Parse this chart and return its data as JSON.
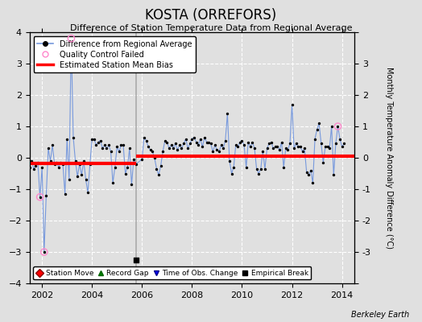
{
  "title": "KOSTA (ORREFORS)",
  "subtitle": "Difference of Station Temperature Data from Regional Average",
  "ylabel": "Monthly Temperature Anomaly Difference (°C)",
  "xlabel_credit": "Berkeley Earth",
  "xlim": [
    2001.5,
    2014.5
  ],
  "ylim": [
    -4,
    4
  ],
  "yticks": [
    -4,
    -3,
    -2,
    -1,
    0,
    1,
    2,
    3,
    4
  ],
  "xticks": [
    2002,
    2004,
    2006,
    2008,
    2010,
    2012,
    2014
  ],
  "bg_color": "#e0e0e0",
  "plot_bg_color": "#e0e0e0",
  "grid_color": "white",
  "line_color": "#7799dd",
  "dot_color": "black",
  "bias_color": "red",
  "qc_fail_color": "#ff88cc",
  "vertical_line_color": "#aaaaaa",
  "vertical_lines": [
    2005.75
  ],
  "bias_break": 2005.75,
  "bias_early": -0.18,
  "bias_late": 0.05,
  "empirical_break_x": 2005.75,
  "empirical_break_y": -3.25,
  "time_series": [
    2001.083,
    2001.167,
    2001.25,
    2001.333,
    2001.417,
    2001.5,
    2001.583,
    2001.667,
    2001.75,
    2001.833,
    2001.917,
    2002.0,
    2002.083,
    2002.167,
    2002.25,
    2002.333,
    2002.417,
    2002.5,
    2002.583,
    2002.667,
    2002.75,
    2002.833,
    2002.917,
    2003.0,
    2003.083,
    2003.167,
    2003.25,
    2003.333,
    2003.417,
    2003.5,
    2003.583,
    2003.667,
    2003.75,
    2003.833,
    2003.917,
    2004.0,
    2004.083,
    2004.167,
    2004.25,
    2004.333,
    2004.417,
    2004.5,
    2004.583,
    2004.667,
    2004.75,
    2004.833,
    2004.917,
    2005.0,
    2005.083,
    2005.167,
    2005.25,
    2005.333,
    2005.417,
    2005.5,
    2005.583,
    2005.667,
    2005.75,
    2006.0,
    2006.083,
    2006.167,
    2006.25,
    2006.333,
    2006.417,
    2006.5,
    2006.583,
    2006.667,
    2006.75,
    2006.833,
    2006.917,
    2007.0,
    2007.083,
    2007.167,
    2007.25,
    2007.333,
    2007.417,
    2007.5,
    2007.583,
    2007.667,
    2007.75,
    2007.833,
    2007.917,
    2008.0,
    2008.083,
    2008.167,
    2008.25,
    2008.333,
    2008.417,
    2008.5,
    2008.583,
    2008.667,
    2008.75,
    2008.833,
    2008.917,
    2009.0,
    2009.083,
    2009.167,
    2009.25,
    2009.333,
    2009.417,
    2009.5,
    2009.583,
    2009.667,
    2009.75,
    2009.833,
    2009.917,
    2010.0,
    2010.083,
    2010.167,
    2010.25,
    2010.333,
    2010.417,
    2010.5,
    2010.583,
    2010.667,
    2010.75,
    2010.833,
    2010.917,
    2011.0,
    2011.083,
    2011.167,
    2011.25,
    2011.333,
    2011.417,
    2011.5,
    2011.583,
    2011.667,
    2011.75,
    2011.833,
    2011.917,
    2012.0,
    2012.083,
    2012.167,
    2012.25,
    2012.333,
    2012.417,
    2012.5,
    2012.583,
    2012.667,
    2012.75,
    2012.833,
    2012.917,
    2013.0,
    2013.083,
    2013.167,
    2013.25,
    2013.333,
    2013.417,
    2013.5,
    2013.583,
    2013.667,
    2013.75,
    2013.833,
    2013.917,
    2014.0,
    2014.083
  ],
  "values": [
    -0.15,
    -0.2,
    0.1,
    -0.1,
    0.05,
    -0.3,
    -0.1,
    -0.35,
    -0.25,
    -0.15,
    -1.25,
    -0.3,
    -3.0,
    -1.2,
    0.3,
    -0.1,
    0.4,
    -0.2,
    -0.15,
    -0.3,
    -0.15,
    -0.2,
    -1.15,
    0.6,
    -0.7,
    3.8,
    0.65,
    -0.1,
    -0.6,
    -0.2,
    -0.55,
    -0.1,
    -0.7,
    -1.1,
    -0.2,
    0.6,
    0.6,
    0.4,
    0.5,
    0.55,
    0.3,
    0.4,
    0.3,
    0.4,
    0.2,
    -0.8,
    -0.3,
    0.35,
    0.2,
    0.4,
    0.4,
    -0.5,
    -0.3,
    0.3,
    -0.85,
    -0.05,
    -0.2,
    -0.05,
    0.65,
    0.55,
    0.35,
    0.25,
    0.2,
    0.0,
    -0.35,
    -0.55,
    -0.25,
    0.2,
    0.55,
    0.5,
    0.3,
    0.4,
    0.3,
    0.45,
    0.25,
    0.4,
    0.3,
    0.45,
    0.6,
    0.3,
    0.45,
    0.6,
    0.65,
    0.5,
    0.4,
    0.6,
    0.35,
    0.65,
    0.5,
    0.5,
    0.45,
    0.2,
    0.4,
    0.25,
    0.2,
    0.4,
    0.3,
    0.55,
    1.4,
    -0.1,
    -0.5,
    -0.3,
    0.4,
    0.35,
    0.5,
    0.55,
    0.4,
    -0.3,
    0.5,
    0.35,
    0.5,
    0.3,
    -0.35,
    -0.5,
    -0.35,
    0.2,
    -0.35,
    0.3,
    0.45,
    0.5,
    0.3,
    0.35,
    0.35,
    0.25,
    0.5,
    -0.3,
    0.3,
    0.25,
    0.45,
    1.7,
    0.3,
    0.45,
    0.35,
    0.35,
    0.2,
    0.3,
    -0.45,
    -0.55,
    -0.4,
    -0.8,
    0.6,
    0.9,
    1.1,
    0.45,
    -0.15,
    0.35,
    0.35,
    0.3,
    1.0,
    -0.55,
    0.45,
    1.0,
    0.6,
    0.35,
    0.45
  ],
  "qc_fail_times": [
    2001.917,
    2002.083,
    2003.167,
    2013.833
  ],
  "qc_fail_values": [
    -1.25,
    -3.0,
    3.8,
    1.0
  ]
}
